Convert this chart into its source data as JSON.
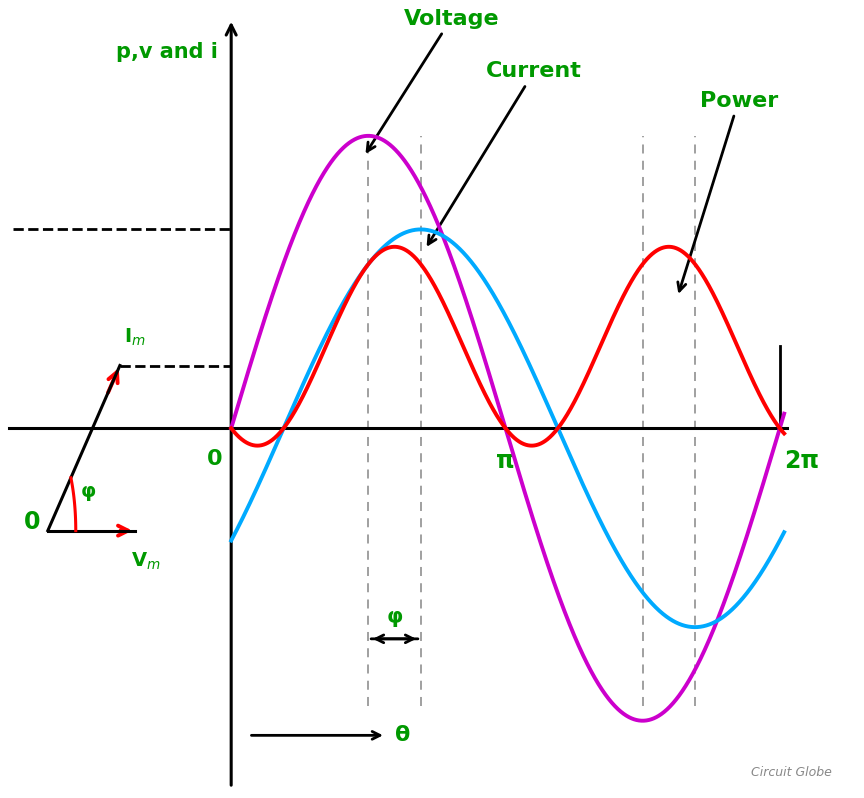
{
  "bg_color": "#ffffff",
  "green_color": "#009900",
  "red_color": "#ff0000",
  "magenta_color": "#cc00cc",
  "cyan_color": "#00aaff",
  "black_color": "#000000",
  "gray_color": "#888888",
  "phi": 0.6,
  "Vm": 1.0,
  "Im": 0.68,
  "ylabel": "p,v and i",
  "xlabel": "θ",
  "voltage_label": "Voltage",
  "current_label": "Current",
  "power_label": "Power",
  "watermark": "Circuit Globe",
  "xlim_left": -2.6,
  "xlim_right": 7.2,
  "ylim_bottom": -1.25,
  "ylim_top": 1.45
}
